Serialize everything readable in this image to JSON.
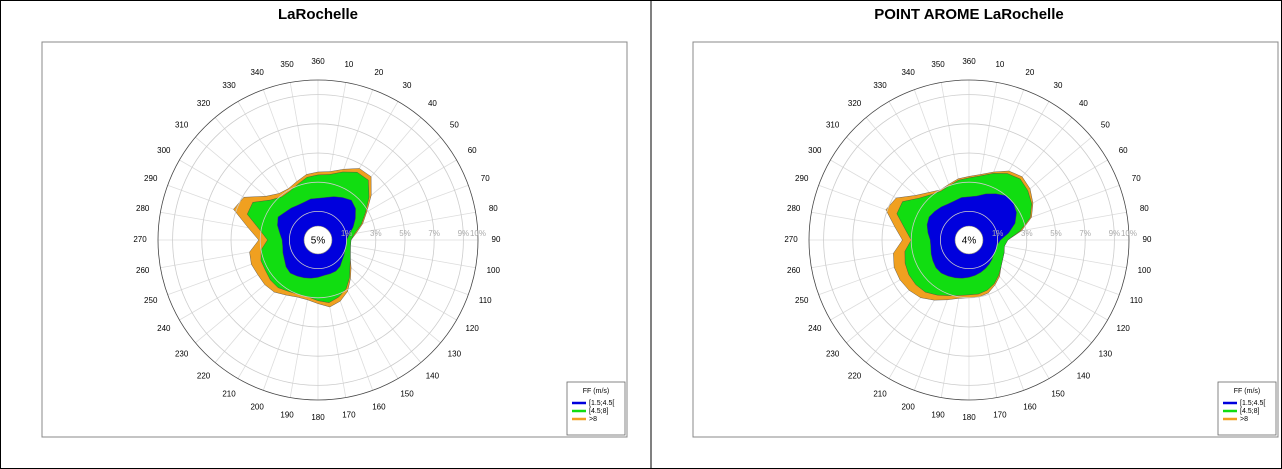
{
  "chart_data": [
    {
      "type": "windrose",
      "title": "LaRochelle",
      "center_text": "5%",
      "categories": [
        "10",
        "20",
        "30",
        "40",
        "50",
        "60",
        "70",
        "80",
        "90",
        "100",
        "110",
        "120",
        "130",
        "140",
        "150",
        "160",
        "170",
        "180",
        "190",
        "200",
        "210",
        "220",
        "230",
        "240",
        "250",
        "260",
        "270",
        "280",
        "290",
        "300",
        "310",
        "320",
        "330",
        "340",
        "350",
        "360"
      ],
      "series": [
        {
          "name": "[1.5;4.5[",
          "color": "#0000dd",
          "values": [
            2.0,
            2.2,
            2.4,
            2.6,
            2.4,
            2.0,
            1.6,
            1.2,
            1.0,
            1.0,
            1.0,
            1.1,
            1.2,
            1.4,
            1.5,
            1.5,
            1.5,
            1.6,
            1.7,
            1.8,
            1.9,
            2.0,
            1.9,
            1.7,
            1.6,
            1.5,
            1.5,
            1.7,
            2.0,
            2.2,
            2.0,
            1.9,
            1.8,
            1.8,
            1.9,
            1.9
          ]
        },
        {
          "name": "[4.5;8]",
          "color": "#11dd11",
          "values": [
            1.6,
            1.8,
            2.0,
            1.8,
            1.2,
            0.8,
            0.6,
            0.4,
            0.3,
            0.3,
            0.4,
            0.5,
            0.7,
            1.0,
            1.4,
            1.7,
            1.9,
            1.6,
            1.3,
            1.2,
            1.2,
            1.3,
            1.4,
            1.5,
            1.6,
            1.5,
            1.0,
            1.4,
            2.2,
            2.0,
            1.3,
            1.0,
            1.1,
            1.3,
            1.5,
            1.6
          ]
        },
        {
          "name": ">8",
          "color": "#f0a020",
          "values": [
            0.2,
            0.2,
            0.3,
            0.3,
            0.2,
            0.1,
            0.1,
            0.1,
            0,
            0,
            0,
            0,
            0.1,
            0.1,
            0.2,
            0.3,
            0.3,
            0.2,
            0.2,
            0.2,
            0.3,
            0.4,
            0.5,
            0.6,
            0.7,
            0.8,
            0.6,
            0.8,
            1.0,
            0.7,
            0.4,
            0.3,
            0.2,
            0.2,
            0.2,
            0.2
          ]
        }
      ],
      "ylim": [
        0,
        10
      ],
      "yticks": [
        {
          "value": 1,
          "label": "1%"
        },
        {
          "value": 3,
          "label": "3%"
        },
        {
          "value": 5,
          "label": "5%"
        },
        {
          "value": 7,
          "label": "7%"
        },
        {
          "value": 9,
          "label": "9%"
        },
        {
          "value": 10,
          "label": "10%"
        }
      ],
      "legend_title": "FF (m/s)",
      "legend": "lower right",
      "grid": true
    },
    {
      "type": "windrose",
      "title": "POINT AROME LaRochelle",
      "center_text": "4%",
      "categories": [
        "10",
        "20",
        "30",
        "40",
        "50",
        "60",
        "70",
        "80",
        "90",
        "100",
        "110",
        "120",
        "130",
        "140",
        "150",
        "160",
        "170",
        "180",
        "190",
        "200",
        "210",
        "220",
        "230",
        "240",
        "250",
        "260",
        "270",
        "280",
        "290",
        "300",
        "310",
        "320",
        "330",
        "340",
        "350",
        "360"
      ],
      "series": [
        {
          "name": "[1.5;4.5[",
          "color": "#0000dd",
          "values": [
            2.1,
            2.4,
            2.7,
            3.0,
            3.0,
            2.8,
            2.4,
            1.8,
            1.2,
            1.0,
            1.0,
            1.0,
            1.1,
            1.2,
            1.3,
            1.4,
            1.5,
            1.6,
            1.7,
            1.8,
            1.9,
            2.0,
            2.0,
            1.9,
            1.8,
            1.7,
            1.7,
            1.9,
            2.1,
            2.2,
            2.1,
            2.0,
            1.9,
            1.9,
            2.0,
            2.0
          ]
        },
        {
          "name": "[4.5;8]",
          "color": "#11dd11",
          "values": [
            1.4,
            1.5,
            1.6,
            1.5,
            1.3,
            1.2,
            1.1,
            0.8,
            0.5,
            0.5,
            0.6,
            0.7,
            0.8,
            1.0,
            1.2,
            1.3,
            1.3,
            1.2,
            1.2,
            1.3,
            1.5,
            1.7,
            1.8,
            1.9,
            1.9,
            1.8,
            1.3,
            1.6,
            2.2,
            2.1,
            1.4,
            1.1,
            1.0,
            1.1,
            1.2,
            1.3
          ]
        },
        {
          "name": ">8",
          "color": "#f0a020",
          "values": [
            0.1,
            0.1,
            0.2,
            0.2,
            0.2,
            0.1,
            0.1,
            0.1,
            0,
            0,
            0,
            0,
            0,
            0.1,
            0.1,
            0.2,
            0.2,
            0.2,
            0.2,
            0.3,
            0.4,
            0.5,
            0.6,
            0.7,
            0.8,
            0.8,
            0.6,
            0.7,
            0.8,
            0.5,
            0.3,
            0.2,
            0.1,
            0.1,
            0.1,
            0.1
          ]
        }
      ],
      "ylim": [
        0,
        10
      ],
      "yticks": [
        {
          "value": 1,
          "label": "1%"
        },
        {
          "value": 3,
          "label": "3%"
        },
        {
          "value": 5,
          "label": "5%"
        },
        {
          "value": 7,
          "label": "7%"
        },
        {
          "value": 9,
          "label": "9%"
        },
        {
          "value": 10,
          "label": "10%"
        }
      ],
      "legend_title": "FF (m/s)",
      "legend": "lower right",
      "grid": true
    }
  ]
}
